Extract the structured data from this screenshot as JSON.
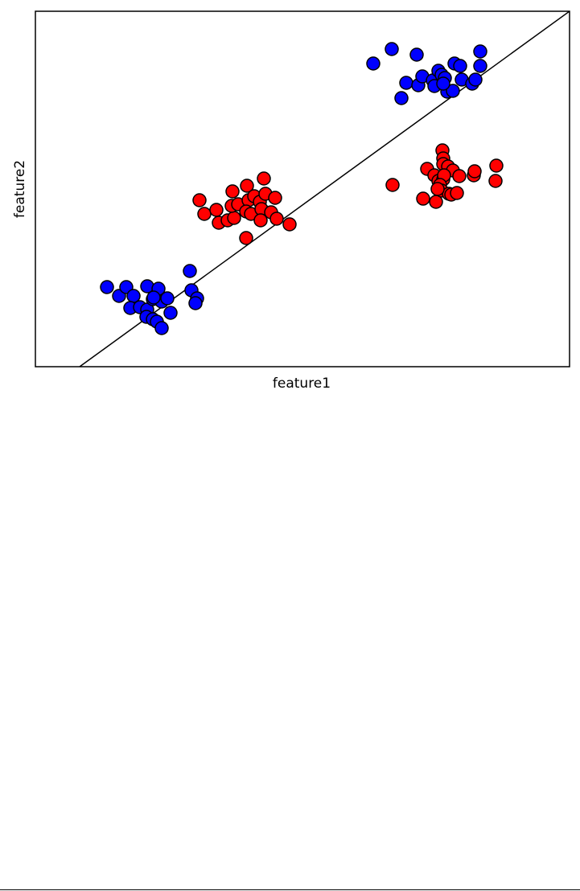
{
  "chart_data": {
    "type": "scatter",
    "x_label": "feature1",
    "y_label": "feature2",
    "xlim": [
      0,
      664
    ],
    "ylim": [
      0,
      442
    ],
    "series": [
      {
        "color": "#0000ff",
        "x": [
          89,
          104,
          113,
          122,
          139,
          153,
          118,
          130,
          139,
          146,
          157,
          164,
          168,
          138,
          146,
          151,
          157,
          192,
          194,
          201,
          199,
          147,
          420,
          443,
          474,
          455,
          461,
          476,
          481,
          494,
          501,
          505,
          509,
          496,
          512,
          519,
          521,
          528,
          530,
          543,
          547,
          553,
          553,
          507
        ],
        "y": [
          99,
          88,
          99,
          88,
          100,
          97,
          73,
          74,
          71,
          84,
          81,
          85,
          67,
          62,
          59,
          56,
          48,
          119,
          95,
          85,
          79,
          86,
          377,
          395,
          388,
          334,
          353,
          350,
          361,
          356,
          368,
          363,
          359,
          349,
          342,
          343,
          377,
          374,
          357,
          352,
          357,
          392,
          374,
          352
        ]
      },
      {
        "color": "#ff0000",
        "x": [
          204,
          210,
          225,
          228,
          239,
          247,
          245,
          244,
          252,
          263,
          265,
          262,
          268,
          272,
          279,
          281,
          284,
          286,
          298,
          280,
          293,
          300,
          316,
          262,
          444,
          482,
          498,
          487,
          506,
          507,
          507,
          513,
          519,
          496,
          501,
          507,
          508,
          503,
          505,
          514,
          517,
          524,
          527,
          545,
          546,
          573,
          572,
          500
        ],
        "y": [
          207,
          190,
          195,
          179,
          182,
          185,
          218,
          200,
          202,
          225,
          207,
          193,
          190,
          212,
          205,
          196,
          234,
          215,
          210,
          182,
          192,
          184,
          177,
          160,
          226,
          209,
          205,
          246,
          269,
          259,
          252,
          249,
          244,
          238,
          231,
          233,
          238,
          226,
          219,
          215,
          214,
          216,
          237,
          238,
          243,
          250,
          231,
          221
        ]
      }
    ],
    "decision_line": {
      "color": "#000000",
      "x": [
        55,
        664
      ],
      "y": [
        0,
        442
      ]
    }
  }
}
